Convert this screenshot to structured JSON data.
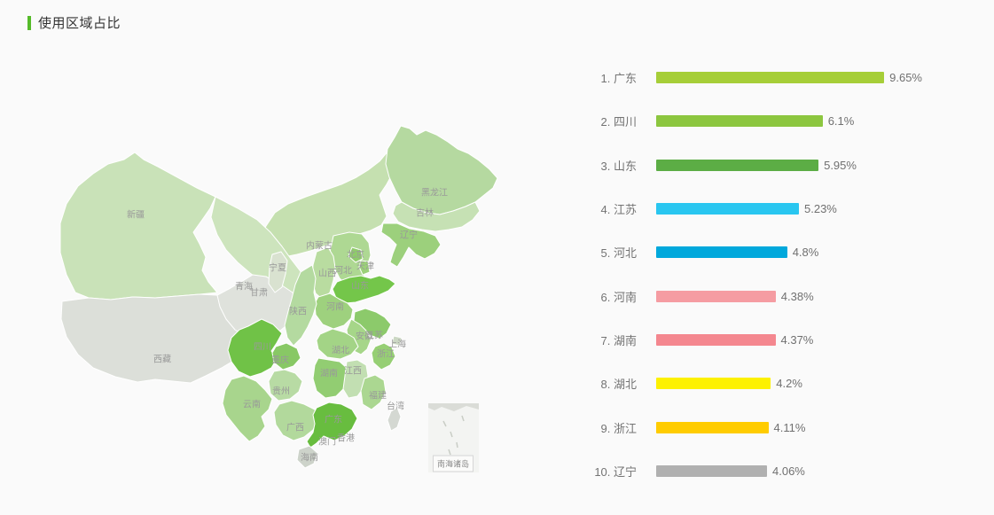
{
  "page": {
    "background": "#fafafa"
  },
  "header": {
    "title": "使用区域占比",
    "accent_color": "#55bb29"
  },
  "map": {
    "inset_label": "南海诸岛",
    "provinces": [
      {
        "name": "新疆",
        "color": "#c9e2b8"
      },
      {
        "name": "西藏",
        "color": "#dcdfd9"
      },
      {
        "name": "内蒙古",
        "color": "#c5e0b0"
      },
      {
        "name": "甘肃",
        "color": "#cde4bd"
      },
      {
        "name": "青海",
        "color": "#dfe2dc"
      },
      {
        "name": "宁夏",
        "color": "#d9e2d0"
      },
      {
        "name": "黑龙江",
        "color": "#b5d9a0"
      },
      {
        "name": "吉林",
        "color": "#c6e1b4"
      },
      {
        "name": "辽宁",
        "color": "#9cd07c"
      },
      {
        "name": "河北",
        "color": "#aed893"
      },
      {
        "name": "北京",
        "color": "#8fcc6a"
      },
      {
        "name": "天津",
        "color": "#9bd178"
      },
      {
        "name": "山西",
        "color": "#b9dca0"
      },
      {
        "name": "山东",
        "color": "#74c64a"
      },
      {
        "name": "河南",
        "color": "#9ed17e"
      },
      {
        "name": "陕西",
        "color": "#b4daa0"
      },
      {
        "name": "江苏",
        "color": "#8cca6b"
      },
      {
        "name": "安徽",
        "color": "#a6d689"
      },
      {
        "name": "上海",
        "color": "#ccd8c4"
      },
      {
        "name": "浙江",
        "color": "#96cf74"
      },
      {
        "name": "湖北",
        "color": "#a3d486"
      },
      {
        "name": "湖南",
        "color": "#92cd72"
      },
      {
        "name": "江西",
        "color": "#c2dfb2"
      },
      {
        "name": "四川",
        "color": "#70c247"
      },
      {
        "name": "重庆",
        "color": "#88c865"
      },
      {
        "name": "贵州",
        "color": "#b8dba4"
      },
      {
        "name": "云南",
        "color": "#a8d58d"
      },
      {
        "name": "广西",
        "color": "#b2d99c"
      },
      {
        "name": "广东",
        "color": "#68bd3f"
      },
      {
        "name": "福建",
        "color": "#abd791"
      },
      {
        "name": "台湾",
        "color": "#d4d8d2"
      },
      {
        "name": "海南",
        "color": "#cdd3ca"
      },
      {
        "name": "香港",
        "color": null
      },
      {
        "name": "澳门",
        "color": null
      }
    ]
  },
  "ranking": {
    "max_value": 9.65,
    "items": [
      {
        "rank": 1,
        "name": "广东",
        "value": 9.65,
        "label": "9.65%",
        "color": "#a6ce38"
      },
      {
        "rank": 2,
        "name": "四川",
        "value": 6.1,
        "label": "6.1%",
        "color": "#8cc63f"
      },
      {
        "rank": 3,
        "name": "山东",
        "value": 5.95,
        "label": "5.95%",
        "color": "#5cad45"
      },
      {
        "rank": 4,
        "name": "江苏",
        "value": 5.23,
        "label": "5.23%",
        "color": "#29c6f0"
      },
      {
        "rank": 5,
        "name": "河北",
        "value": 4.8,
        "label": "4.8%",
        "color": "#00a8dc"
      },
      {
        "rank": 6,
        "name": "河南",
        "value": 4.38,
        "label": "4.38%",
        "color": "#f59ca2"
      },
      {
        "rank": 7,
        "name": "湖南",
        "value": 4.37,
        "label": "4.37%",
        "color": "#f4878f"
      },
      {
        "rank": 8,
        "name": "湖北",
        "value": 4.2,
        "label": "4.2%",
        "color": "#fdf100"
      },
      {
        "rank": 9,
        "name": "浙江",
        "value": 4.11,
        "label": "4.11%",
        "color": "#ffcc00"
      },
      {
        "rank": 10,
        "name": "辽宁",
        "value": 4.06,
        "label": "4.06%",
        "color": "#b0b0b0"
      }
    ]
  },
  "chart_data": [
    {
      "type": "bar",
      "orientation": "horizontal",
      "title": "使用区域占比",
      "categories": [
        "广东",
        "四川",
        "山东",
        "江苏",
        "河北",
        "河南",
        "湖南",
        "湖北",
        "浙江",
        "辽宁"
      ],
      "values": [
        9.65,
        6.1,
        5.95,
        5.23,
        4.8,
        4.38,
        4.37,
        4.2,
        4.11,
        4.06
      ],
      "unit": "%",
      "xlabel": "",
      "ylabel": "",
      "xlim": [
        0,
        9.65
      ],
      "grid": false,
      "legend": false,
      "value_labels": [
        "9.65%",
        "6.1%",
        "5.95%",
        "5.23%",
        "4.8%",
        "4.38%",
        "4.37%",
        "4.2%",
        "4.11%",
        "4.06%"
      ]
    },
    {
      "type": "heatmap",
      "subtype": "choropleth-map",
      "region": "中国",
      "title": "使用区域占比",
      "highlighted_provinces": [
        "广东",
        "四川",
        "山东"
      ],
      "inset": "南海诸岛",
      "note": "Province shading (light→dark green) encodes usage share; gray = low/no data"
    }
  ]
}
